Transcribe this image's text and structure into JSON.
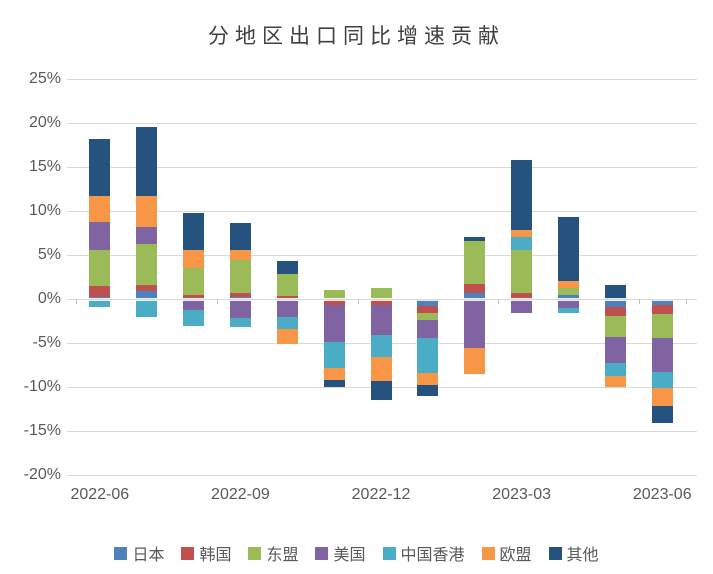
{
  "chart_data": {
    "type": "bar",
    "stacked": true,
    "title": "分地区出口同比增速贡献",
    "categories": [
      "2022-06",
      "2022-07",
      "2022-08",
      "2022-09",
      "2022-10",
      "2022-11",
      "2022-12",
      "2023-01",
      "2023-02",
      "2023-03",
      "2023-04",
      "2023-05",
      "2023-06"
    ],
    "x_tick_labels": [
      "2022-06",
      "2022-09",
      "2022-12",
      "2023-03",
      "2023-06"
    ],
    "x_tick_indices": [
      0,
      3,
      6,
      9,
      12
    ],
    "ylabel": "",
    "xlabel": "",
    "ylim": [
      -20,
      25
    ],
    "ytick_step": 5,
    "ytick_suffix": "%",
    "grid": true,
    "legend_position": "bottom",
    "series": [
      {
        "name": "日本",
        "color": "#4F81BD",
        "values": [
          0.3,
          0.9,
          0.1,
          0.3,
          0.0,
          0.0,
          0.0,
          -0.8,
          0.7,
          0.2,
          0.5,
          -0.9,
          -0.7
        ]
      },
      {
        "name": "韩国",
        "color": "#C0504D",
        "values": [
          1.2,
          0.7,
          0.4,
          0.4,
          0.4,
          -0.6,
          -0.6,
          -0.8,
          1.0,
          0.5,
          0.0,
          -1.0,
          -1.0
        ]
      },
      {
        "name": "东盟",
        "color": "#9BBB59",
        "values": [
          4.1,
          4.7,
          3.1,
          3.8,
          2.5,
          1.1,
          1.3,
          -0.7,
          4.9,
          4.9,
          0.8,
          -2.4,
          -2.7
        ]
      },
      {
        "name": "美国",
        "color": "#8064A2",
        "values": [
          3.2,
          1.9,
          -1.2,
          -2.1,
          -2.0,
          -4.2,
          -3.4,
          -2.1,
          -5.5,
          -1.5,
          -1.0,
          -2.9,
          -3.8
        ]
      },
      {
        "name": "中国香港",
        "color": "#4BACC6",
        "values": [
          -0.9,
          -2.0,
          -1.8,
          -1.0,
          -1.4,
          -3.0,
          -2.5,
          -4.0,
          0.0,
          1.5,
          -0.6,
          -1.5,
          -1.9
        ]
      },
      {
        "name": "欧盟",
        "color": "#F79646",
        "values": [
          2.9,
          3.5,
          2.0,
          1.1,
          -1.7,
          -1.4,
          -2.8,
          -1.3,
          -3.0,
          0.8,
          0.8,
          -1.2,
          -2.0
        ]
      },
      {
        "name": "其他",
        "color": "#25527F",
        "values": [
          6.5,
          7.9,
          4.2,
          3.1,
          1.5,
          -0.8,
          -2.1,
          -1.3,
          0.5,
          7.9,
          7.2,
          1.6,
          -1.9
        ]
      }
    ],
    "style": {
      "grid_color": "#D9D9D9",
      "axis_text_color": "#595959",
      "title_color": "#404040",
      "background": "#FFFFFF"
    }
  }
}
